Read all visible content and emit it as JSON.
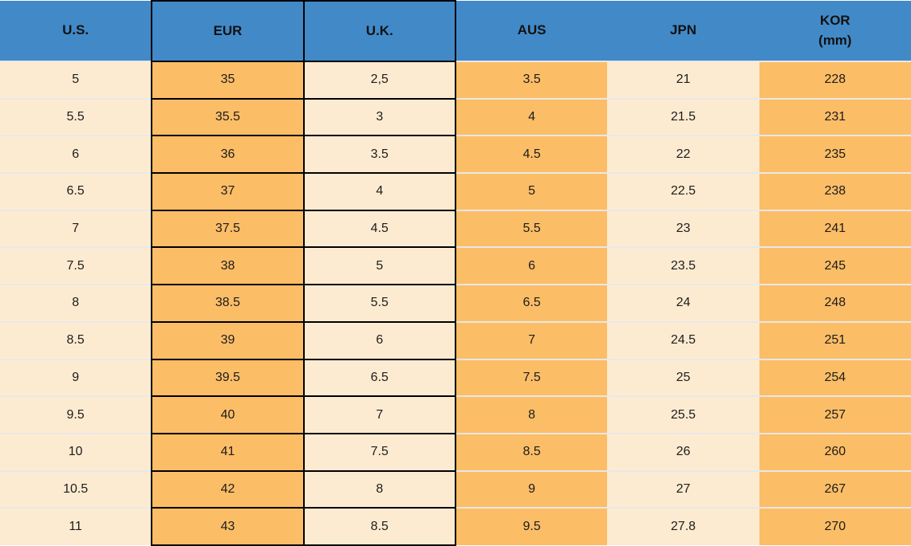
{
  "colors": {
    "header_bg": "#4289c8",
    "orange_cell": "#fcbd67",
    "cream_cell": "#fdebd1",
    "row_divider": "#e8e8e8",
    "highlight_border": "#000000",
    "text": "#1c1c1c"
  },
  "table": {
    "columns": [
      {
        "key": "us",
        "label": "U.S.",
        "highlighted": false
      },
      {
        "key": "eur",
        "label": "EUR",
        "highlighted": true
      },
      {
        "key": "uk",
        "label": "U.K.",
        "highlighted": true
      },
      {
        "key": "aus",
        "label": "AUS",
        "highlighted": false
      },
      {
        "key": "jpn",
        "label": "JPN",
        "highlighted": false
      },
      {
        "key": "kor",
        "label": "KOR",
        "sublabel": "(mm)",
        "highlighted": false
      }
    ],
    "rows": [
      [
        "5",
        "35",
        "2,5",
        "3.5",
        "21",
        "228"
      ],
      [
        "5.5",
        "35.5",
        "3",
        "4",
        "21.5",
        "231"
      ],
      [
        "6",
        "36",
        "3.5",
        "4.5",
        "22",
        "235"
      ],
      [
        "6.5",
        "37",
        "4",
        "5",
        "22.5",
        "238"
      ],
      [
        "7",
        "37.5",
        "4.5",
        "5.5",
        "23",
        "241"
      ],
      [
        "7.5",
        "38",
        "5",
        "6",
        "23.5",
        "245"
      ],
      [
        "8",
        "38.5",
        "5.5",
        "6.5",
        "24",
        "248"
      ],
      [
        "8.5",
        "39",
        "6",
        "7",
        "24.5",
        "251"
      ],
      [
        "9",
        "39.5",
        "6.5",
        "7.5",
        "25",
        "254"
      ],
      [
        "9.5",
        "40",
        "7",
        "8",
        "25.5",
        "257"
      ],
      [
        "10",
        "41",
        "7.5",
        "8.5",
        "26",
        "260"
      ],
      [
        "10.5",
        "42",
        "8",
        "9",
        "27",
        "267"
      ],
      [
        "11",
        "43",
        "8.5",
        "9.5",
        "27.8",
        "270"
      ]
    ]
  },
  "chart_data": {
    "type": "table",
    "title": "Shoe size conversion table",
    "columns": [
      "U.S.",
      "EUR",
      "U.K.",
      "AUS",
      "JPN",
      "KOR (mm)"
    ],
    "highlighted_columns": [
      "EUR",
      "U.K."
    ],
    "rows": [
      [
        "5",
        "35",
        "2,5",
        "3.5",
        "21",
        "228"
      ],
      [
        "5.5",
        "35.5",
        "3",
        "4",
        "21.5",
        "231"
      ],
      [
        "6",
        "36",
        "3.5",
        "4.5",
        "22",
        "235"
      ],
      [
        "6.5",
        "37",
        "4",
        "5",
        "22.5",
        "238"
      ],
      [
        "7",
        "37.5",
        "4.5",
        "5.5",
        "23",
        "241"
      ],
      [
        "7.5",
        "38",
        "5",
        "6",
        "23.5",
        "245"
      ],
      [
        "8",
        "38.5",
        "5.5",
        "6.5",
        "24",
        "248"
      ],
      [
        "8.5",
        "39",
        "6",
        "7",
        "24.5",
        "251"
      ],
      [
        "9",
        "39.5",
        "6.5",
        "7.5",
        "25",
        "254"
      ],
      [
        "9.5",
        "40",
        "7",
        "8",
        "25.5",
        "257"
      ],
      [
        "10",
        "41",
        "7.5",
        "8.5",
        "26",
        "260"
      ],
      [
        "10.5",
        "42",
        "8",
        "9",
        "27",
        "267"
      ],
      [
        "11",
        "43",
        "8.5",
        "9.5",
        "27.8",
        "270"
      ]
    ]
  }
}
